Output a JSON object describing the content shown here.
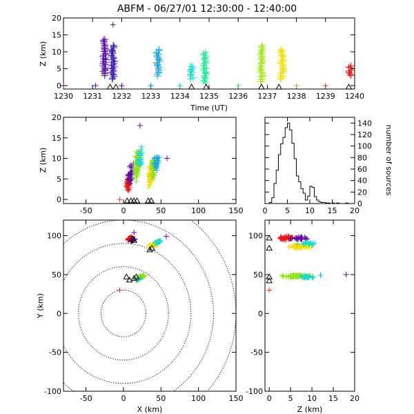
{
  "title": "ABFM - 06/27/01 12:30:00 - 12:40:00",
  "colors": {
    "stations": "#000000",
    "contours": "#000000"
  },
  "chart_data": [
    {
      "id": "time_height",
      "type": "scatter",
      "xlabel": "Time (UT)",
      "ylabel": "Z (km)",
      "xlim": [
        1230,
        1240
      ],
      "ylim": [
        -1,
        20
      ],
      "xticks": [
        "1230",
        "1231",
        "1232",
        "1233",
        "1234",
        "1235",
        "1236",
        "1237",
        "1238",
        "1239",
        "1240"
      ],
      "yticks": [
        "0",
        "5",
        "10",
        "15",
        "20"
      ],
      "bursts": [
        {
          "t": 1231.4,
          "zmin": 3,
          "zmax": 14,
          "color": "#5a0aa8"
        },
        {
          "t": 1231.7,
          "zmin": 2,
          "zmax": 12,
          "color": "#3a1ab8"
        },
        {
          "t": 1233.25,
          "zmin": 3,
          "zmax": 11,
          "color": "#1aa8e8"
        },
        {
          "t": 1234.4,
          "zmin": 2,
          "zmax": 6,
          "color": "#20d8c8"
        },
        {
          "t": 1234.85,
          "zmin": 1,
          "zmax": 10,
          "color": "#20e898"
        },
        {
          "t": 1236.8,
          "zmin": 1,
          "zmax": 12,
          "color": "#a8e820"
        },
        {
          "t": 1237.5,
          "zmin": 2,
          "zmax": 11,
          "color": "#f0e000"
        },
        {
          "t": 1239.85,
          "zmin": 3,
          "zmax": 6,
          "color": "#e81818"
        }
      ],
      "extra_points": [
        {
          "t": 1231.7,
          "z": 18,
          "color": "#5a0aa8"
        },
        {
          "t": 1230.0,
          "z": 0,
          "color": "#5a0aa8"
        },
        {
          "t": 1231.1,
          "z": 0,
          "color": "#5a0aa8"
        },
        {
          "t": 1232.0,
          "z": 0,
          "color": "#5a0aa8"
        },
        {
          "t": 1233.0,
          "z": 0,
          "color": "#1a78e8"
        },
        {
          "t": 1234.0,
          "z": 0,
          "color": "#20d8c8"
        },
        {
          "t": 1236.0,
          "z": 0,
          "color": "#48e840"
        },
        {
          "t": 1238.0,
          "z": 0,
          "color": "#f0a000"
        },
        {
          "t": 1239.0,
          "z": 0,
          "color": "#e84010"
        }
      ],
      "station_times": [
        1231.6,
        1231.8,
        1234.4,
        1234.9,
        1236.8,
        1237.4,
        1239.8
      ]
    },
    {
      "id": "x_height",
      "type": "scatter",
      "xlabel": "",
      "ylabel": "Z (km)",
      "xlim": [
        -80,
        150
      ],
      "ylim": [
        -1,
        20
      ],
      "xticks": [
        "-50",
        "0",
        "50",
        "100",
        "150"
      ],
      "yticks": [
        "0",
        "5",
        "10",
        "15",
        "20"
      ],
      "clusters": [
        {
          "cx": 6,
          "cz": 4,
          "sx": 3,
          "sz": 2,
          "n": 40,
          "color": "#e81818"
        },
        {
          "cx": 10,
          "cz": 6,
          "sx": 4,
          "sz": 3,
          "n": 30,
          "color": "#5a0aa8"
        },
        {
          "cx": 18,
          "cz": 8,
          "sx": 4,
          "sz": 4,
          "n": 70,
          "color": "#90e020"
        },
        {
          "cx": 22,
          "cz": 10,
          "sx": 4,
          "sz": 3,
          "n": 30,
          "color": "#20d8c8"
        },
        {
          "cx": 36,
          "cz": 6,
          "sx": 4,
          "sz": 3,
          "n": 50,
          "color": "#f0e000"
        },
        {
          "cx": 40,
          "cz": 8,
          "sx": 4,
          "sz": 3,
          "n": 50,
          "color": "#90e020"
        },
        {
          "cx": 44,
          "cz": 9,
          "sx": 4,
          "sz": 2,
          "n": 30,
          "color": "#1aa8e8"
        }
      ],
      "extra_points": [
        {
          "x": 22,
          "z": 18,
          "color": "#5a0aa8"
        },
        {
          "x": -5,
          "z": 0,
          "color": "#e84010"
        },
        {
          "x": 58,
          "z": 10,
          "color": "#5a0aa8"
        }
      ],
      "stations_x": [
        5,
        10,
        14,
        18,
        33,
        37
      ]
    },
    {
      "id": "histogram",
      "type": "bar",
      "ylabel": "number of sources",
      "xlim": [
        0,
        20
      ],
      "ylim": [
        0,
        150
      ],
      "xticks": [
        "0",
        "5",
        "10",
        "15",
        "20"
      ],
      "yticks": [
        "0",
        "20",
        "40",
        "60",
        "80",
        "100",
        "120",
        "140"
      ],
      "bin_width": 0.5,
      "bin_starts": [
        0,
        0.5,
        1,
        1.5,
        2,
        2.5,
        3,
        3.5,
        4,
        4.5,
        5,
        5.5,
        6,
        6.5,
        7,
        7.5,
        8,
        8.5,
        9,
        9.5,
        10,
        10.5,
        11,
        11.5,
        12,
        12.5,
        13,
        13.5,
        14,
        14.5,
        15,
        15.5,
        16,
        16.5,
        17,
        17.5,
        18,
        18.5,
        19,
        19.5
      ],
      "values": [
        0,
        0,
        2,
        10,
        35,
        58,
        85,
        104,
        115,
        132,
        140,
        128,
        105,
        78,
        48,
        38,
        26,
        18,
        6,
        13,
        30,
        28,
        12,
        6,
        3,
        2,
        2,
        1,
        1,
        0,
        1,
        0,
        1,
        0,
        0,
        0,
        1,
        0,
        0,
        0
      ]
    },
    {
      "id": "plan_view",
      "type": "scatter",
      "xlabel": "X (km)",
      "ylabel": "Y (km)",
      "xlim": [
        -80,
        150
      ],
      "ylim": [
        -100,
        120
      ],
      "xticks": [
        "-50",
        "0",
        "50",
        "100",
        "150"
      ],
      "yticks": [
        "-100",
        "-50",
        "0",
        "50",
        "100"
      ],
      "rings_km": [
        30,
        60,
        90,
        120,
        150
      ],
      "clusters": [
        {
          "cx": 8,
          "cy": 96,
          "sx": 3,
          "sy": 3,
          "n": 45,
          "color": "#e81818"
        },
        {
          "cx": 12,
          "cy": 94,
          "sx": 3,
          "sy": 3,
          "n": 15,
          "color": "#5a0aa8"
        },
        {
          "cx": 40,
          "cy": 88,
          "sx": 6,
          "sy": 4,
          "n": 40,
          "color": "#f0e000"
        },
        {
          "cx": 46,
          "cy": 92,
          "sx": 4,
          "sy": 3,
          "n": 20,
          "color": "#20d8c8"
        },
        {
          "cx": 23,
          "cy": 47,
          "sx": 4,
          "sy": 3,
          "n": 45,
          "color": "#90e020"
        },
        {
          "cx": 20,
          "cy": 44,
          "sx": 3,
          "sy": 2,
          "n": 15,
          "color": "#20c8a8"
        }
      ],
      "extra_points": [
        {
          "x": 57,
          "y": 99,
          "color": "#5a0aa8"
        },
        {
          "x": -5,
          "y": 30,
          "color": "#e84010"
        },
        {
          "x": 14,
          "y": 104,
          "color": "#5a0aa8"
        }
      ],
      "stations": [
        [
          4,
          47
        ],
        [
          8,
          43
        ],
        [
          14,
          45
        ],
        [
          17,
          47
        ],
        [
          14,
          94
        ],
        [
          12,
          96
        ],
        [
          35,
          82
        ],
        [
          38,
          84
        ]
      ]
    },
    {
      "id": "z_y",
      "type": "scatter",
      "xlabel": "Z (km)",
      "ylabel": "",
      "xlim": [
        -1,
        20
      ],
      "ylim": [
        -100,
        120
      ],
      "xticks": [
        "0",
        "5",
        "10",
        "15",
        "20"
      ],
      "yticks": [
        "-100",
        "-50",
        "0",
        "50",
        "100"
      ],
      "clusters": [
        {
          "cz": 4,
          "cy": 97,
          "sz": 1.5,
          "sy": 3,
          "n": 35,
          "color": "#e81818"
        },
        {
          "cz": 7,
          "cy": 97,
          "sz": 2,
          "sy": 3,
          "n": 25,
          "color": "#5a0aa8"
        },
        {
          "cz": 7,
          "cy": 86,
          "sz": 2.5,
          "sy": 3,
          "n": 45,
          "color": "#f0e000"
        },
        {
          "cz": 9,
          "cy": 90,
          "sz": 2,
          "sy": 3,
          "n": 20,
          "color": "#20d8c8"
        },
        {
          "cz": 6,
          "cy": 48,
          "sz": 3,
          "sy": 2,
          "n": 60,
          "color": "#90e020"
        },
        {
          "cz": 9,
          "cy": 47,
          "sz": 2,
          "sy": 2,
          "n": 25,
          "color": "#20d8c8"
        }
      ],
      "extra_points": [
        {
          "z": 18,
          "y": 50,
          "color": "#5a0aa8"
        },
        {
          "z": 0,
          "y": 30,
          "color": "#e84010"
        },
        {
          "z": 12,
          "y": 49,
          "color": "#1aa8e8"
        }
      ],
      "stations": [
        [
          0,
          84
        ],
        [
          0,
          97
        ],
        [
          0,
          47
        ],
        [
          0,
          42
        ]
      ]
    }
  ]
}
